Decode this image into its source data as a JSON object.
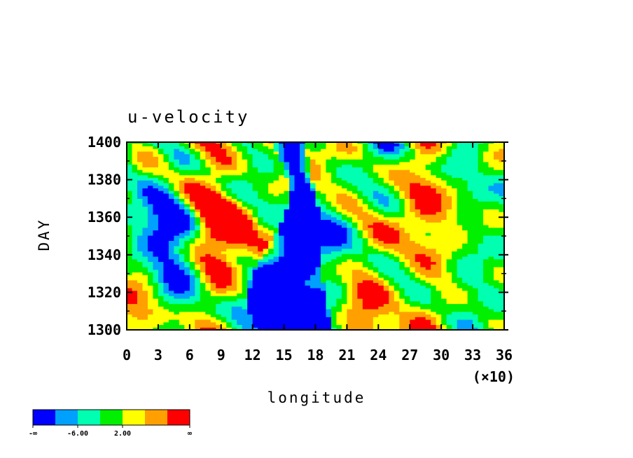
{
  "chart_data": {
    "type": "heatmap",
    "title": "u-velocity",
    "xlabel": "longitude",
    "ylabel": "DAY",
    "x_multiplier_label": "(×10)",
    "xlim": [
      0,
      36
    ],
    "ylim": [
      1300,
      1400
    ],
    "x_ticks": [
      "0",
      "3",
      "6",
      "9",
      "12",
      "15",
      "18",
      "21",
      "24",
      "27",
      "30",
      "33",
      "36"
    ],
    "y_ticks": [
      "1300",
      "1320",
      "1340",
      "1360",
      "1380",
      "1400"
    ],
    "colorbar": {
      "colors": [
        "#0000ff",
        "#00a0ff",
        "#00ffb0",
        "#00f000",
        "#ffff00",
        "#ffa000",
        "#ff0000"
      ],
      "labels": [
        "-∞",
        "-6.00",
        "2.00",
        "∞"
      ]
    },
    "features": [
      {
        "name": "westward-jet",
        "x_center": 16,
        "x_halfwidth_min": 1.2,
        "x_halfwidth_max": 3.8,
        "y_range": [
          1300,
          1400
        ]
      }
    ]
  }
}
